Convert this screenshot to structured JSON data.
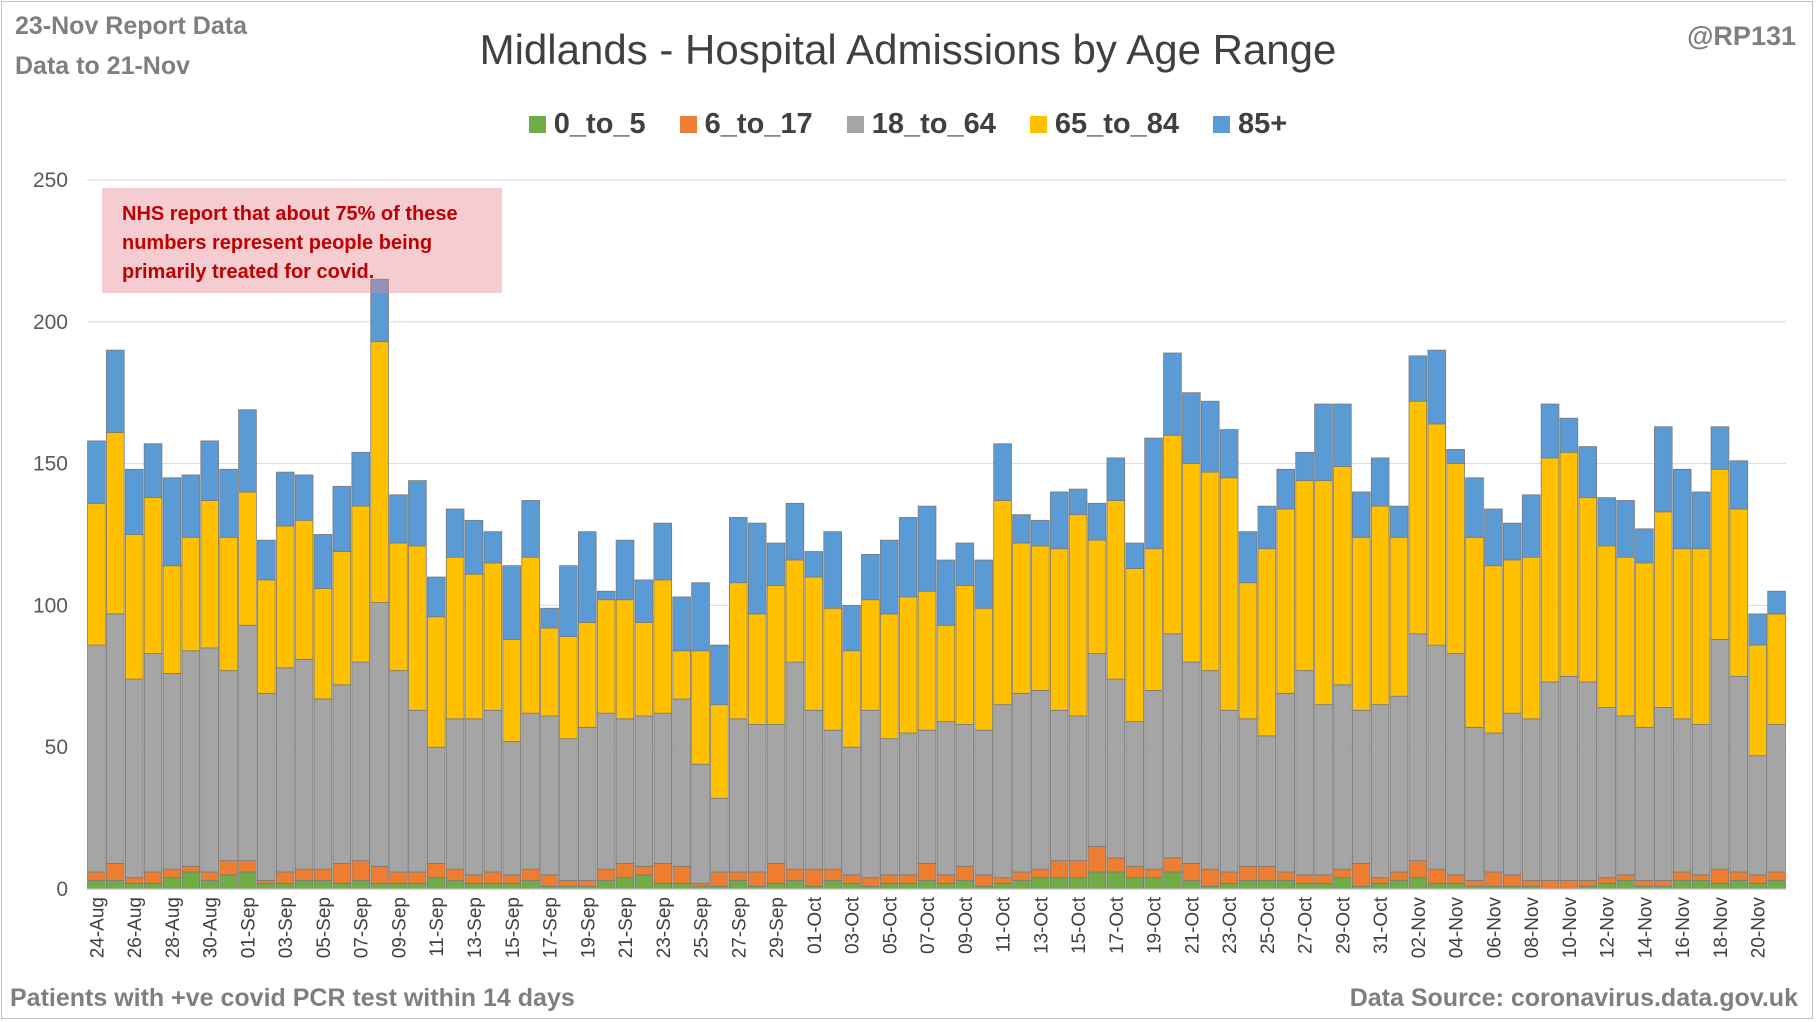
{
  "header": {
    "report_line1": "23-Nov Report Data",
    "report_line2": "Data to 21-Nov",
    "author": "@RP131"
  },
  "annotation": {
    "line1": "NHS report that about 75% of these",
    "line2": "numbers represent people being",
    "line3": "primarily treated for covid."
  },
  "footer": {
    "left": "Patients with  +ve covid PCR test within 14 days",
    "right": "Data Source: coronavirus.data.gov.uk"
  },
  "chart_data": {
    "type": "bar",
    "stacked": true,
    "title": "Midlands - Hospital Admissions by Age Range",
    "xlabel": "",
    "ylabel": "",
    "ylim": [
      0,
      250
    ],
    "yticks": [
      0,
      50,
      100,
      150,
      200,
      250
    ],
    "grid": true,
    "legend_position": "top",
    "colors": {
      "0_to_5": "#70ad47",
      "6_to_17": "#ed7d31",
      "18_to_64": "#a5a5a5",
      "65_to_84": "#ffc000",
      "85+": "#5b9bd5"
    },
    "x_tick_labels": [
      "24-Aug",
      "26-Aug",
      "28-Aug",
      "30-Aug",
      "01-Sep",
      "03-Sep",
      "05-Sep",
      "07-Sep",
      "09-Sep",
      "11-Sep",
      "13-Sep",
      "15-Sep",
      "17-Sep",
      "19-Sep",
      "21-Sep",
      "23-Sep",
      "25-Sep",
      "27-Sep",
      "29-Sep",
      "01-Oct",
      "03-Oct",
      "05-Oct",
      "07-Oct",
      "09-Oct",
      "11-Oct",
      "13-Oct",
      "15-Oct",
      "17-Oct",
      "19-Oct",
      "21-Oct",
      "23-Oct",
      "25-Oct",
      "27-Oct",
      "29-Oct",
      "31-Oct",
      "02-Nov",
      "04-Nov",
      "06-Nov",
      "08-Nov",
      "10-Nov",
      "12-Nov",
      "14-Nov",
      "16-Nov",
      "18-Nov",
      "20-Nov"
    ],
    "categories": [
      "24-Aug",
      "25-Aug",
      "26-Aug",
      "27-Aug",
      "28-Aug",
      "29-Aug",
      "30-Aug",
      "31-Aug",
      "01-Sep",
      "02-Sep",
      "03-Sep",
      "04-Sep",
      "05-Sep",
      "06-Sep",
      "07-Sep",
      "08-Sep",
      "09-Sep",
      "10-Sep",
      "11-Sep",
      "12-Sep",
      "13-Sep",
      "14-Sep",
      "15-Sep",
      "16-Sep",
      "17-Sep",
      "18-Sep",
      "19-Sep",
      "20-Sep",
      "21-Sep",
      "22-Sep",
      "23-Sep",
      "24-Sep",
      "25-Sep",
      "26-Sep",
      "27-Sep",
      "28-Sep",
      "29-Sep",
      "30-Sep",
      "01-Oct",
      "02-Oct",
      "03-Oct",
      "04-Oct",
      "05-Oct",
      "06-Oct",
      "07-Oct",
      "08-Oct",
      "09-Oct",
      "10-Oct",
      "11-Oct",
      "12-Oct",
      "13-Oct",
      "14-Oct",
      "15-Oct",
      "16-Oct",
      "17-Oct",
      "18-Oct",
      "19-Oct",
      "20-Oct",
      "21-Oct",
      "22-Oct",
      "23-Oct",
      "24-Oct",
      "25-Oct",
      "26-Oct",
      "27-Oct",
      "28-Oct",
      "29-Oct",
      "30-Oct",
      "31-Oct",
      "01-Nov",
      "02-Nov",
      "03-Nov",
      "04-Nov",
      "05-Nov",
      "06-Nov",
      "07-Nov",
      "08-Nov",
      "09-Nov",
      "10-Nov",
      "11-Nov",
      "12-Nov",
      "13-Nov",
      "14-Nov",
      "15-Nov",
      "16-Nov",
      "17-Nov",
      "18-Nov",
      "19-Nov",
      "20-Nov",
      "21-Nov"
    ],
    "series": [
      {
        "name": "0_to_5",
        "values": [
          3,
          3,
          2,
          2,
          4,
          6,
          3,
          5,
          6,
          2,
          2,
          3,
          3,
          2,
          3,
          2,
          2,
          2,
          4,
          3,
          2,
          2,
          2,
          3,
          1,
          1,
          1,
          3,
          4,
          5,
          2,
          2,
          1,
          1,
          3,
          1,
          2,
          3,
          1,
          3,
          2,
          1,
          2,
          2,
          3,
          2,
          3,
          1,
          2,
          3,
          4,
          4,
          4,
          6,
          6,
          4,
          4,
          6,
          3,
          1,
          2,
          3,
          3,
          3,
          2,
          2,
          4,
          1,
          2,
          3,
          4,
          2,
          2,
          1,
          1,
          1,
          1,
          0,
          0,
          1,
          2,
          3,
          1,
          1,
          3,
          3,
          2,
          3,
          2,
          3
        ]
      },
      {
        "name": "6_to_17",
        "values": [
          3,
          6,
          2,
          4,
          3,
          2,
          3,
          5,
          4,
          1,
          4,
          4,
          4,
          7,
          7,
          6,
          4,
          4,
          5,
          4,
          3,
          4,
          3,
          4,
          4,
          2,
          2,
          4,
          5,
          3,
          7,
          6,
          1,
          5,
          3,
          5,
          7,
          4,
          6,
          4,
          3,
          3,
          3,
          3,
          6,
          3,
          5,
          4,
          2,
          3,
          3,
          6,
          6,
          9,
          5,
          4,
          3,
          5,
          6,
          6,
          4,
          5,
          5,
          3,
          3,
          3,
          3,
          8,
          2,
          3,
          6,
          5,
          3,
          2,
          5,
          4,
          2,
          3,
          3,
          2,
          2,
          2,
          2,
          2,
          3,
          2,
          5,
          3,
          3,
          3
        ]
      },
      {
        "name": "18_to_64",
        "values": [
          80,
          88,
          70,
          77,
          69,
          76,
          79,
          67,
          83,
          66,
          72,
          74,
          60,
          63,
          70,
          93,
          71,
          57,
          41,
          53,
          55,
          57,
          47,
          55,
          56,
          50,
          54,
          55,
          51,
          53,
          53,
          59,
          42,
          26,
          54,
          52,
          49,
          73,
          56,
          49,
          45,
          59,
          48,
          50,
          47,
          54,
          50,
          51,
          61,
          63,
          63,
          53,
          51,
          68,
          63,
          51,
          63,
          79,
          71,
          70,
          57,
          52,
          46,
          63,
          72,
          60,
          65,
          54,
          61,
          62,
          80,
          79,
          78,
          54,
          49,
          57,
          57,
          70,
          72,
          70,
          60,
          56,
          54,
          61,
          54,
          53,
          81,
          69,
          42,
          52
        ]
      },
      {
        "name": "65_to_84",
        "values": [
          50,
          64,
          51,
          55,
          38,
          40,
          52,
          47,
          47,
          40,
          50,
          49,
          39,
          47,
          55,
          92,
          45,
          58,
          46,
          57,
          51,
          52,
          36,
          55,
          31,
          36,
          37,
          40,
          42,
          33,
          47,
          17,
          40,
          33,
          48,
          39,
          49,
          36,
          47,
          43,
          34,
          39,
          44,
          48,
          49,
          34,
          49,
          43,
          72,
          53,
          51,
          57,
          71,
          40,
          63,
          54,
          50,
          70,
          70,
          70,
          82,
          48,
          66,
          65,
          67,
          79,
          77,
          61,
          70,
          56,
          82,
          78,
          67,
          67,
          59,
          54,
          57,
          79,
          79,
          65,
          57,
          56,
          58,
          69,
          60,
          62,
          60,
          59,
          39,
          39
        ]
      },
      {
        "name": "85+",
        "values": [
          22,
          29,
          23,
          19,
          31,
          22,
          21,
          24,
          29,
          14,
          19,
          16,
          19,
          23,
          19,
          22,
          17,
          23,
          14,
          17,
          19,
          11,
          26,
          20,
          7,
          25,
          32,
          3,
          21,
          15,
          20,
          19,
          24,
          21,
          23,
          32,
          15,
          20,
          9,
          27,
          16,
          16,
          26,
          28,
          30,
          23,
          15,
          17,
          20,
          10,
          9,
          20,
          9,
          13,
          15,
          9,
          39,
          29,
          25,
          25,
          17,
          18,
          15,
          14,
          10,
          27,
          22,
          16,
          17,
          11,
          16,
          26,
          5,
          21,
          20,
          13,
          22,
          19,
          12,
          18,
          17,
          20,
          12,
          30,
          28,
          20,
          15,
          17,
          11,
          8
        ]
      }
    ]
  }
}
